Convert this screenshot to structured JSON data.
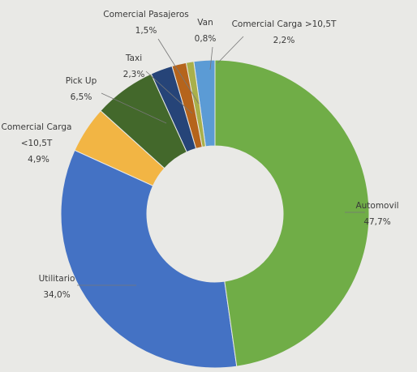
{
  "chart_data": {
    "type": "donut",
    "categories": [
      "Automovil",
      "Utilitario",
      "Comercial Carga <10,5T",
      "Pick Up",
      "Taxi",
      "Comercial Pasajeros",
      "Van",
      "Comercial Carga >10,5T"
    ],
    "values": [
      47.7,
      34.0,
      4.9,
      6.5,
      2.3,
      1.5,
      0.8,
      2.2
    ],
    "value_labels": [
      "47,7%",
      "34,0%",
      "4,9%",
      "6,5%",
      "2,3%",
      "1,5%",
      "0,8%",
      "2,2%"
    ],
    "colors": [
      "#70ad47",
      "#4472c4",
      "#f2b544",
      "#43682b",
      "#264478",
      "#b5641c",
      "#a9b04a",
      "#5b9bd5"
    ]
  }
}
